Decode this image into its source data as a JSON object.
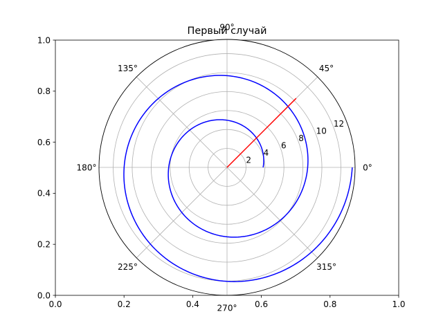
{
  "chart_data": {
    "type": "line",
    "subtype": "polar",
    "title": "Первый случай",
    "cartesian_axes": {
      "xlim": [
        0,
        1
      ],
      "ylim": [
        0,
        1
      ],
      "x_ticks": [
        "0.0",
        "0.2",
        "0.4",
        "0.6",
        "0.8",
        "1.0"
      ],
      "y_ticks": [
        "0.0",
        "0.2",
        "0.4",
        "0.6",
        "0.8",
        "1.0"
      ]
    },
    "polar_axes": {
      "rlim": [
        0,
        13.5
      ],
      "r_ticks": [
        2,
        4,
        6,
        8,
        10,
        12
      ],
      "r_tick_labels": [
        "2",
        "4",
        "6",
        "8",
        "10",
        "12"
      ],
      "r_label_angle_deg": 22.5,
      "theta_ticks_deg": [
        0,
        45,
        90,
        135,
        180,
        225,
        270,
        315
      ],
      "theta_tick_labels": [
        "0°",
        "45°",
        "90°",
        "135°",
        "180°",
        "225°",
        "270°",
        "315°"
      ],
      "grid": true
    },
    "series": [
      {
        "color": "#0000ff",
        "function": "spiral r = 3.8 + 0.75 * theta",
        "theta_range_rad": [
          0,
          12.566
        ],
        "r_range": [
          3.8,
          13.2
        ]
      },
      {
        "color": "#ff0000",
        "function": "ray theta = 45°",
        "theta_deg": 45,
        "r_range": [
          0,
          10.3
        ]
      }
    ]
  }
}
